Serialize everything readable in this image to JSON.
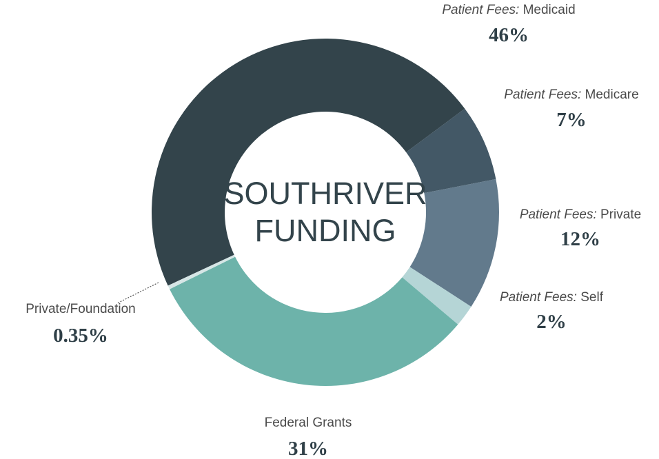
{
  "chart_data": {
    "type": "donut",
    "title": "SOUTHRIVER FUNDING",
    "categories": [
      "Medicaid",
      "Medicare",
      "Private",
      "Self",
      "Federal Grants",
      "Private/Foundation"
    ],
    "groups": [
      "Patient Fees:",
      "Patient Fees:",
      "Patient Fees:",
      "Patient Fees:",
      null,
      null
    ],
    "values": [
      46,
      7,
      12,
      2,
      31,
      0.35
    ],
    "value_labels": [
      "46%",
      "7%",
      "12%",
      "2%",
      "31%",
      "0.35%"
    ],
    "colors": [
      "#33444b",
      "#435866",
      "#627a8c",
      "#b5d5d6",
      "#6db3aa",
      "#d6e6e6"
    ]
  }
}
